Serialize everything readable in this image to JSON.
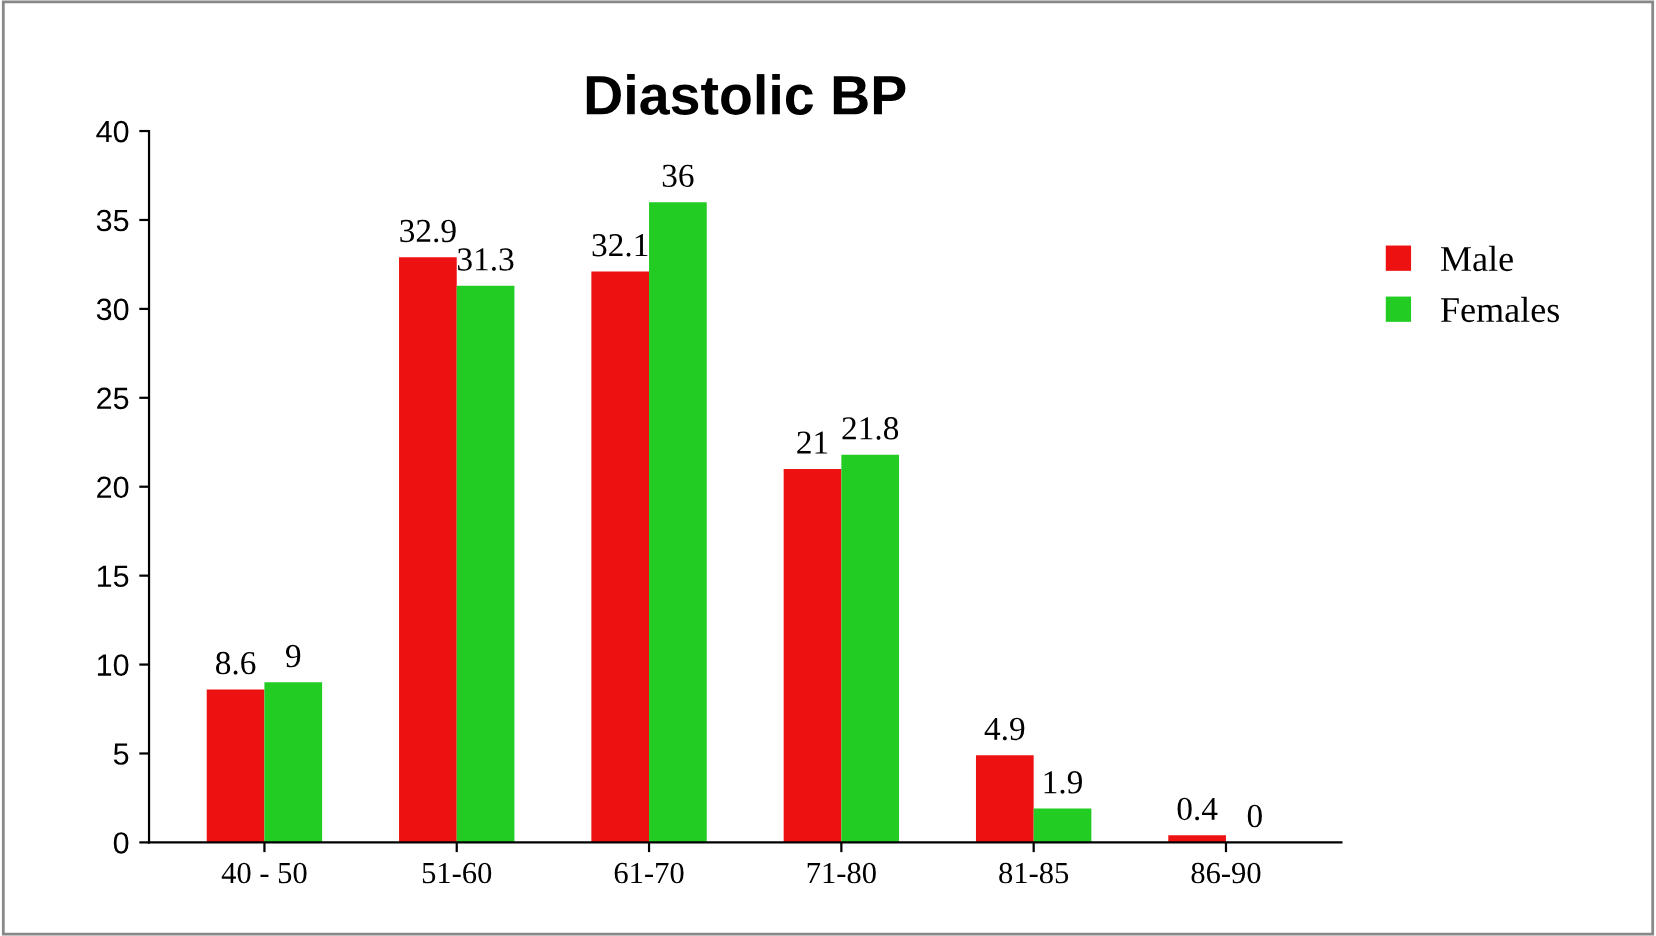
{
  "chart_data": {
    "type": "bar",
    "title": "Diastolic BP",
    "categories": [
      "40 - 50",
      "51-60",
      "61-70",
      "71-80",
      "81-85",
      "86-90"
    ],
    "series": [
      {
        "name": "Male",
        "color": "#ee1111",
        "values": [
          8.6,
          32.9,
          32.1,
          21,
          4.9,
          0.4
        ]
      },
      {
        "name": "Females",
        "color": "#22cc22",
        "values": [
          9,
          31.3,
          36,
          21.8,
          1.9,
          0
        ]
      }
    ],
    "ylim": [
      0,
      40
    ],
    "yticks": [
      0,
      5,
      10,
      15,
      20,
      25,
      30,
      35,
      40
    ],
    "grid": false,
    "legend": "right",
    "data_labels": true
  }
}
